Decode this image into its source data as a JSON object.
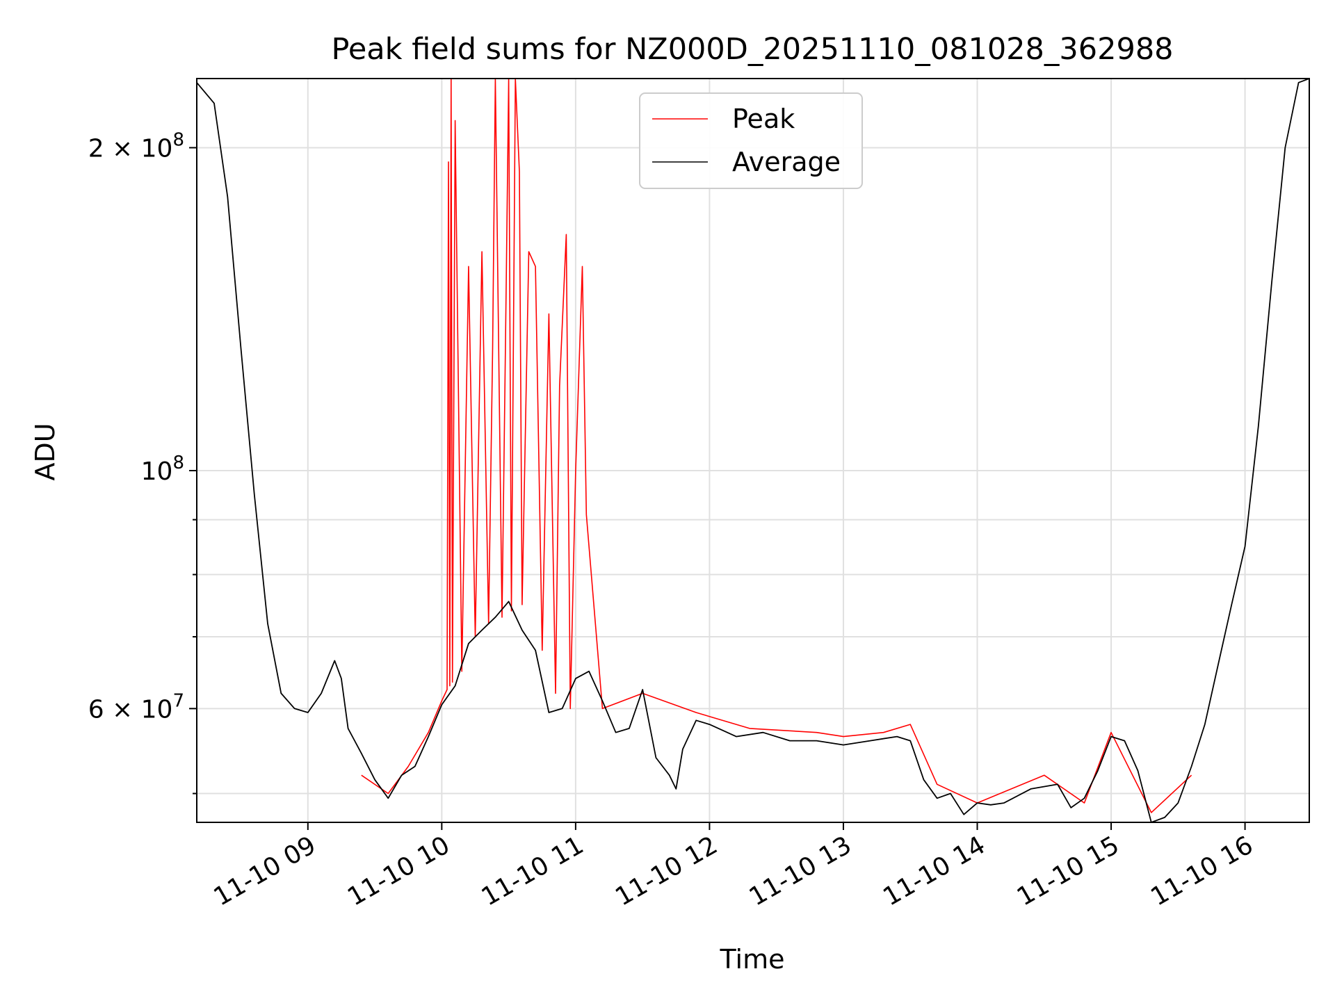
{
  "chart_data": {
    "type": "line",
    "title": "Peak field sums for NZ000D_20251110_081028_362988",
    "xlabel": "Time",
    "ylabel": "ADU",
    "yscale": "log",
    "xlim": [
      8.17,
      16.48
    ],
    "ylim": [
      47000000,
      232000000
    ],
    "x_unit": "hour of day 2025-11-10",
    "grid": true,
    "legend_position": "upper-center",
    "xticks": [
      {
        "value": 9,
        "label": "11-10 09"
      },
      {
        "value": 10,
        "label": "11-10 10"
      },
      {
        "value": 11,
        "label": "11-10 11"
      },
      {
        "value": 12,
        "label": "11-10 12"
      },
      {
        "value": 13,
        "label": "11-10 13"
      },
      {
        "value": 14,
        "label": "11-10 14"
      },
      {
        "value": 15,
        "label": "11-10 15"
      },
      {
        "value": 16,
        "label": "11-10 16"
      }
    ],
    "yticks_major": [
      {
        "value": 200000000,
        "base": "2 × 10",
        "exp": "8"
      },
      {
        "value": 100000000,
        "base": "10",
        "exp": "8"
      },
      {
        "value": 60000000,
        "base": "6 × 10",
        "exp": "7"
      }
    ],
    "yticks_minor": [
      50000000,
      70000000,
      80000000,
      90000000
    ],
    "series": [
      {
        "name": "Peak",
        "color": "#ff0000",
        "x": [
          9.4,
          9.6,
          9.75,
          9.9,
          10.0,
          10.04,
          10.05,
          10.06,
          10.07,
          10.08,
          10.1,
          10.15,
          10.2,
          10.25,
          10.3,
          10.35,
          10.38,
          10.4,
          10.45,
          10.48,
          10.5,
          10.52,
          10.55,
          10.58,
          10.6,
          10.65,
          10.7,
          10.75,
          10.8,
          10.85,
          10.88,
          10.93,
          10.96,
          11.0,
          11.05,
          11.08,
          11.2,
          11.5,
          11.9,
          12.3,
          12.8,
          13.0,
          13.3,
          13.5,
          13.7,
          14.0,
          14.5,
          14.8,
          15.0,
          15.3,
          15.6
        ],
        "y": [
          52000000,
          50000000,
          53000000,
          57000000,
          61000000,
          62500000,
          194000000,
          63000000,
          232000000,
          63500000,
          212000000,
          65000000,
          155000000,
          70000000,
          160000000,
          72000000,
          130000000,
          232000000,
          73000000,
          145000000,
          232000000,
          74000000,
          232000000,
          190000000,
          75000000,
          160000000,
          155000000,
          68000000,
          140000000,
          62000000,
          120000000,
          166000000,
          60000000,
          100000000,
          155000000,
          91000000,
          60000000,
          62000000,
          59500000,
          57500000,
          57000000,
          56500000,
          57000000,
          58000000,
          51000000,
          49000000,
          52000000,
          49000000,
          57000000,
          48000000,
          52000000
        ]
      },
      {
        "name": "Average",
        "color": "#000000",
        "x": [
          8.17,
          8.3,
          8.4,
          8.5,
          8.6,
          8.7,
          8.8,
          8.9,
          9.0,
          9.1,
          9.2,
          9.25,
          9.3,
          9.4,
          9.5,
          9.6,
          9.7,
          9.8,
          9.9,
          10.0,
          10.1,
          10.2,
          10.3,
          10.4,
          10.5,
          10.6,
          10.7,
          10.8,
          10.9,
          11.0,
          11.1,
          11.2,
          11.3,
          11.4,
          11.5,
          11.6,
          11.7,
          11.75,
          11.8,
          11.9,
          12.0,
          12.2,
          12.4,
          12.6,
          12.8,
          13.0,
          13.2,
          13.4,
          13.5,
          13.6,
          13.7,
          13.8,
          13.9,
          14.0,
          14.1,
          14.2,
          14.4,
          14.6,
          14.7,
          14.8,
          14.9,
          15.0,
          15.1,
          15.2,
          15.3,
          15.4,
          15.5,
          15.6,
          15.7,
          15.8,
          15.9,
          16.0,
          16.1,
          16.2,
          16.3,
          16.4,
          16.48
        ],
        "y": [
          230000000,
          220000000,
          180000000,
          130000000,
          95000000,
          72000000,
          62000000,
          60000000,
          59500000,
          62000000,
          66500000,
          64000000,
          57500000,
          54500000,
          51500000,
          49500000,
          52000000,
          53000000,
          56500000,
          60500000,
          63000000,
          69000000,
          71000000,
          73000000,
          75500000,
          71000000,
          68000000,
          59500000,
          60000000,
          64000000,
          65000000,
          61000000,
          57000000,
          57500000,
          62500000,
          54000000,
          52000000,
          50500000,
          55000000,
          58500000,
          58000000,
          56500000,
          57000000,
          56000000,
          56000000,
          55500000,
          56000000,
          56500000,
          56000000,
          51500000,
          49500000,
          50000000,
          47800000,
          49000000,
          48800000,
          49000000,
          50500000,
          51000000,
          48500000,
          49500000,
          52500000,
          56500000,
          56000000,
          52500000,
          47000000,
          47500000,
          49000000,
          53000000,
          58000000,
          66000000,
          75000000,
          85000000,
          110000000,
          150000000,
          200000000,
          230000000,
          232000000
        ]
      }
    ]
  }
}
